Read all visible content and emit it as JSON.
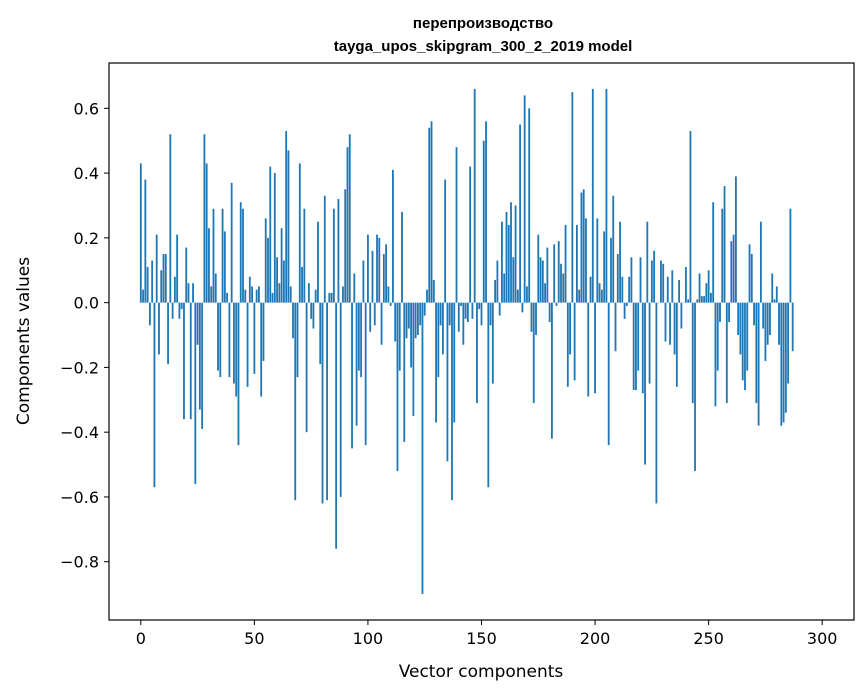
{
  "chart_data": {
    "type": "bar",
    "title": "перепроизводство",
    "subtitle": "tayga_upos_skipgram_300_2_2019 model",
    "xlabel": "Vector components",
    "ylabel": "Components values",
    "xlim": [
      -14,
      314
    ],
    "ylim": [
      -0.98,
      0.74
    ],
    "xticks": [
      0,
      50,
      100,
      150,
      200,
      250,
      300
    ],
    "xtick_labels": [
      "0",
      "50",
      "100",
      "150",
      "200",
      "250",
      "300"
    ],
    "yticks": [
      -0.8,
      -0.6,
      -0.4,
      -0.2,
      0.0,
      0.2,
      0.4,
      0.6
    ],
    "ytick_labels": [
      "−0.8",
      "−0.6",
      "−0.4",
      "−0.2",
      "0.0",
      "0.2",
      "0.4",
      "0.6"
    ],
    "bar_color": "#1f77b4",
    "grid": false,
    "values": [
      0.43,
      0.04,
      0.38,
      0.11,
      -0.07,
      0.13,
      -0.57,
      0.21,
      -0.16,
      0.1,
      0.15,
      0.15,
      -0.19,
      0.52,
      -0.05,
      0.08,
      0.21,
      -0.05,
      -0.02,
      -0.36,
      0.17,
      0.06,
      -0.36,
      0.06,
      -0.56,
      -0.13,
      -0.33,
      -0.39,
      0.52,
      0.43,
      0.23,
      0.05,
      0.29,
      0.09,
      -0.21,
      -0.23,
      0.29,
      0.22,
      0.03,
      -0.23,
      0.37,
      -0.25,
      -0.29,
      -0.44,
      0.31,
      0.29,
      0.04,
      -0.26,
      0.08,
      0.05,
      -0.22,
      0.04,
      0.05,
      -0.29,
      -0.18,
      0.26,
      0.2,
      0.42,
      0.03,
      0.4,
      0.14,
      0.06,
      0.23,
      0.13,
      0.53,
      0.47,
      0.05,
      -0.11,
      -0.61,
      -0.23,
      0.43,
      0.11,
      0.29,
      -0.4,
      0.06,
      -0.05,
      -0.08,
      0.04,
      0.25,
      -0.19,
      -0.62,
      0.33,
      -0.61,
      0.03,
      0.03,
      0.29,
      -0.76,
      0.32,
      -0.6,
      0.05,
      0.35,
      0.48,
      0.52,
      -0.45,
      0.09,
      -0.38,
      -0.21,
      -0.23,
      0.13,
      -0.44,
      0.21,
      -0.09,
      0.16,
      -0.07,
      0.21,
      0.2,
      -0.13,
      0.15,
      0.18,
      0.05,
      -0.01,
      0.41,
      -0.12,
      -0.52,
      -0.21,
      0.28,
      -0.43,
      -0.11,
      -0.08,
      -0.2,
      -0.35,
      -0.11,
      -0.1,
      -0.07,
      -0.9,
      -0.04,
      0.04,
      0.54,
      0.56,
      0.07,
      -0.37,
      -0.23,
      -0.07,
      -0.16,
      0.38,
      -0.49,
      -0.07,
      -0.61,
      -0.37,
      0.48,
      -0.09,
      -0.01,
      -0.13,
      -0.05,
      -0.06,
      0.42,
      -0.05,
      0.66,
      -0.31,
      -0.02,
      -0.07,
      0.5,
      0.56,
      -0.57,
      -0.07,
      -0.25,
      0.07,
      0.13,
      -0.04,
      0.25,
      0.09,
      0.28,
      0.24,
      0.31,
      0.14,
      0.3,
      0.04,
      0.55,
      -0.03,
      0.64,
      0.05,
      0.6,
      -0.09,
      -0.31,
      -0.1,
      0.21,
      0.14,
      0.13,
      0.06,
      0.17,
      -0.06,
      -0.42,
      0.18,
      -0.01,
      0.19,
      0.12,
      0.09,
      0.24,
      -0.26,
      -0.16,
      0.65,
      -0.24,
      0.24,
      0.04,
      0.34,
      0.35,
      0.26,
      -0.29,
      0.08,
      0.66,
      -0.28,
      0.26,
      0.06,
      0.04,
      0.22,
      0.66,
      -0.44,
      0.2,
      0.33,
      -0.15,
      0.15,
      0.25,
      0.08,
      -0.05,
      -0.01,
      0.08,
      0.14,
      -0.27,
      -0.27,
      -0.21,
      0.14,
      -0.28,
      -0.5,
      0.25,
      -0.25,
      0.13,
      0.16,
      -0.62,
      0.0,
      0.13,
      0.12,
      -0.12,
      0.08,
      -0.13,
      0.1,
      -0.16,
      -0.26,
      0.07,
      -0.08,
      0.0,
      0.11,
      0.01,
      0.53,
      -0.31,
      -0.52,
      0.01,
      0.09,
      0.02,
      0.02,
      0.06,
      0.1,
      0.03,
      0.31,
      -0.32,
      -0.21,
      -0.06,
      0.29,
      0.36,
      -0.31,
      -0.06,
      0.19,
      0.21,
      0.39,
      -0.1,
      -0.16,
      -0.24,
      -0.27,
      -0.21,
      0.18,
      0.15,
      -0.07,
      -0.31,
      -0.38,
      0.25,
      -0.08,
      -0.18,
      -0.13,
      -0.1,
      0.09,
      0.01,
      0.05,
      -0.13,
      -0.38,
      -0.37,
      -0.34,
      -0.25,
      0.29,
      -0.15
    ]
  }
}
